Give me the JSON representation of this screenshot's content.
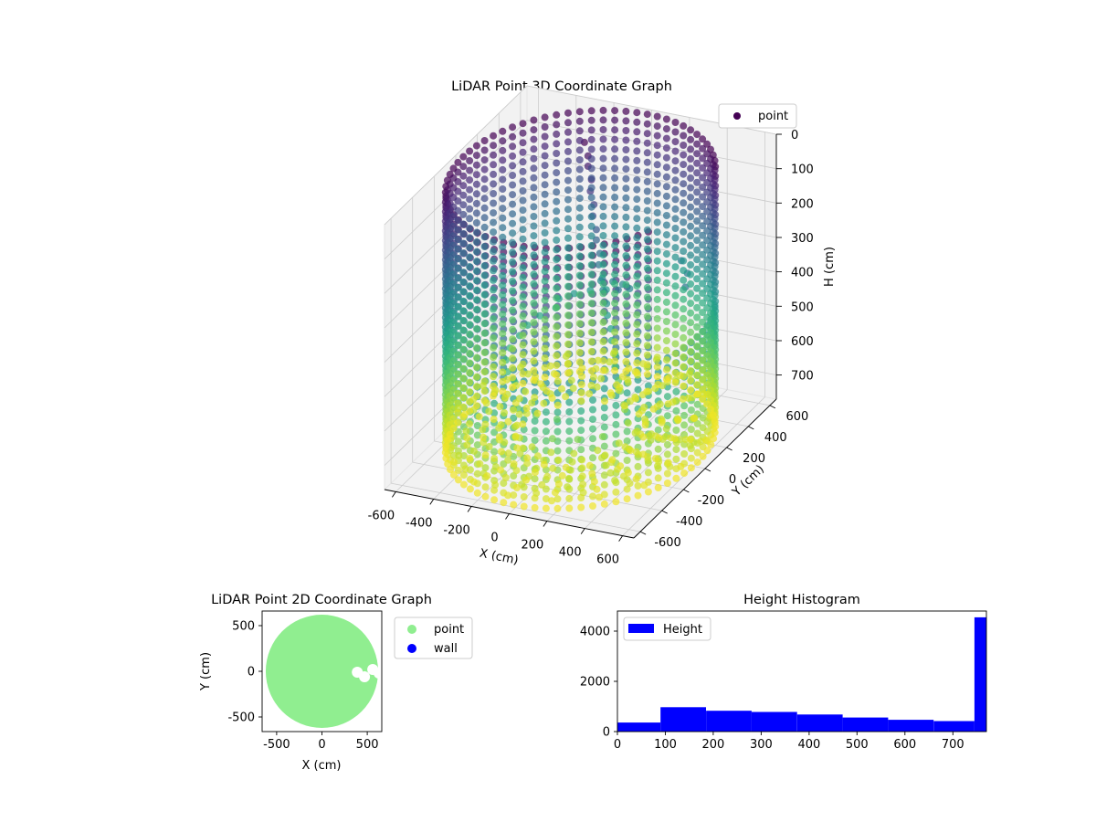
{
  "colors": {
    "viridis": [
      "#440154",
      "#482878",
      "#3e4989",
      "#31688e",
      "#26828e",
      "#1f9e89",
      "#35b779",
      "#6ece58",
      "#b5de2b",
      "#fde725"
    ],
    "point_2d": "#90ee90",
    "wall_2d": "#0000ff",
    "histogram": "#0000ff",
    "pane": "#f2f2f2",
    "grid": "#cccccc"
  },
  "chart_data": [
    {
      "type": "scatter3d",
      "title": "LiDAR Point 3D Coordinate Graph",
      "xlabel": "X (cm)",
      "ylabel": "Y (cm)",
      "zlabel": "H (cm)",
      "xlim": [
        -660,
        660
      ],
      "ylim": [
        -660,
        660
      ],
      "zlim": [
        0,
        770
      ],
      "z_inverted": true,
      "x_ticks": [
        -600,
        -400,
        -200,
        0,
        200,
        400,
        600
      ],
      "y_ticks": [
        -600,
        -400,
        -200,
        0,
        200,
        400,
        600
      ],
      "z_ticks": [
        0,
        100,
        200,
        300,
        400,
        500,
        600,
        700
      ],
      "legend": [
        "point"
      ],
      "legend_position": "top-right",
      "color_by": "height",
      "colormap": "viridis",
      "wall_radius": 620,
      "wall_opening_degrees": [
        -30,
        30
      ],
      "grid": true
    },
    {
      "type": "scatter",
      "title": "LiDAR Point 2D Coordinate Graph",
      "xlabel": "X (cm)",
      "ylabel": "Y (cm)",
      "xlim": [
        -660,
        660
      ],
      "ylim": [
        -660,
        660
      ],
      "x_ticks": [
        -500,
        0,
        500
      ],
      "y_ticks": [
        -500,
        0,
        500
      ],
      "series": [
        {
          "name": "point",
          "region": "disk",
          "radius": 620
        },
        {
          "name": "wall",
          "count": 0
        }
      ],
      "gaps": [
        {
          "x": 390,
          "y": -10
        },
        {
          "x": 470,
          "y": -60
        },
        {
          "x": 560,
          "y": 20
        },
        {
          "x": 630,
          "y": -20
        }
      ],
      "legend_position": "outside-right"
    },
    {
      "type": "bar",
      "title": "Height Histogram",
      "xlim": [
        0,
        770
      ],
      "ylim": [
        0,
        4800
      ],
      "x_ticks": [
        0,
        100,
        200,
        300,
        400,
        500,
        600,
        700
      ],
      "y_ticks": [
        0,
        2000,
        4000
      ],
      "bins": [
        {
          "x0": 0,
          "x1": 90,
          "value": 360
        },
        {
          "x0": 90,
          "x1": 185,
          "value": 970
        },
        {
          "x0": 185,
          "x1": 280,
          "value": 830
        },
        {
          "x0": 280,
          "x1": 375,
          "value": 780
        },
        {
          "x0": 375,
          "x1": 470,
          "value": 680
        },
        {
          "x0": 470,
          "x1": 565,
          "value": 560
        },
        {
          "x0": 565,
          "x1": 660,
          "value": 470
        },
        {
          "x0": 660,
          "x1": 745,
          "value": 420
        },
        {
          "x0": 745,
          "x1": 770,
          "value": 4550
        }
      ],
      "legend": [
        "Height"
      ],
      "legend_position": "top-left"
    }
  ]
}
